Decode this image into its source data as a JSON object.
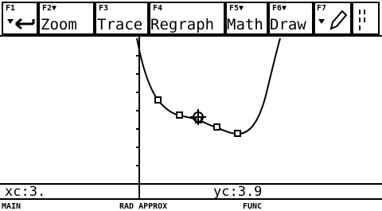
{
  "toolbar": {
    "tabs": [
      {
        "key": "F1"
      },
      {
        "key": "F2▼",
        "label": "Zoom"
      },
      {
        "key": "F3",
        "label": "Trace"
      },
      {
        "key": "F4",
        "label": "Regraph"
      },
      {
        "key": "F5▼",
        "label": "Math"
      },
      {
        "key": "F6▼",
        "label": "Draw"
      },
      {
        "key": "F7"
      }
    ]
  },
  "entry": {
    "xc": "xc:3.",
    "yc": "yc:3.9"
  },
  "status": {
    "app": "MAIN",
    "mode": "RAD APPROX",
    "graph": "FUNC"
  }
}
